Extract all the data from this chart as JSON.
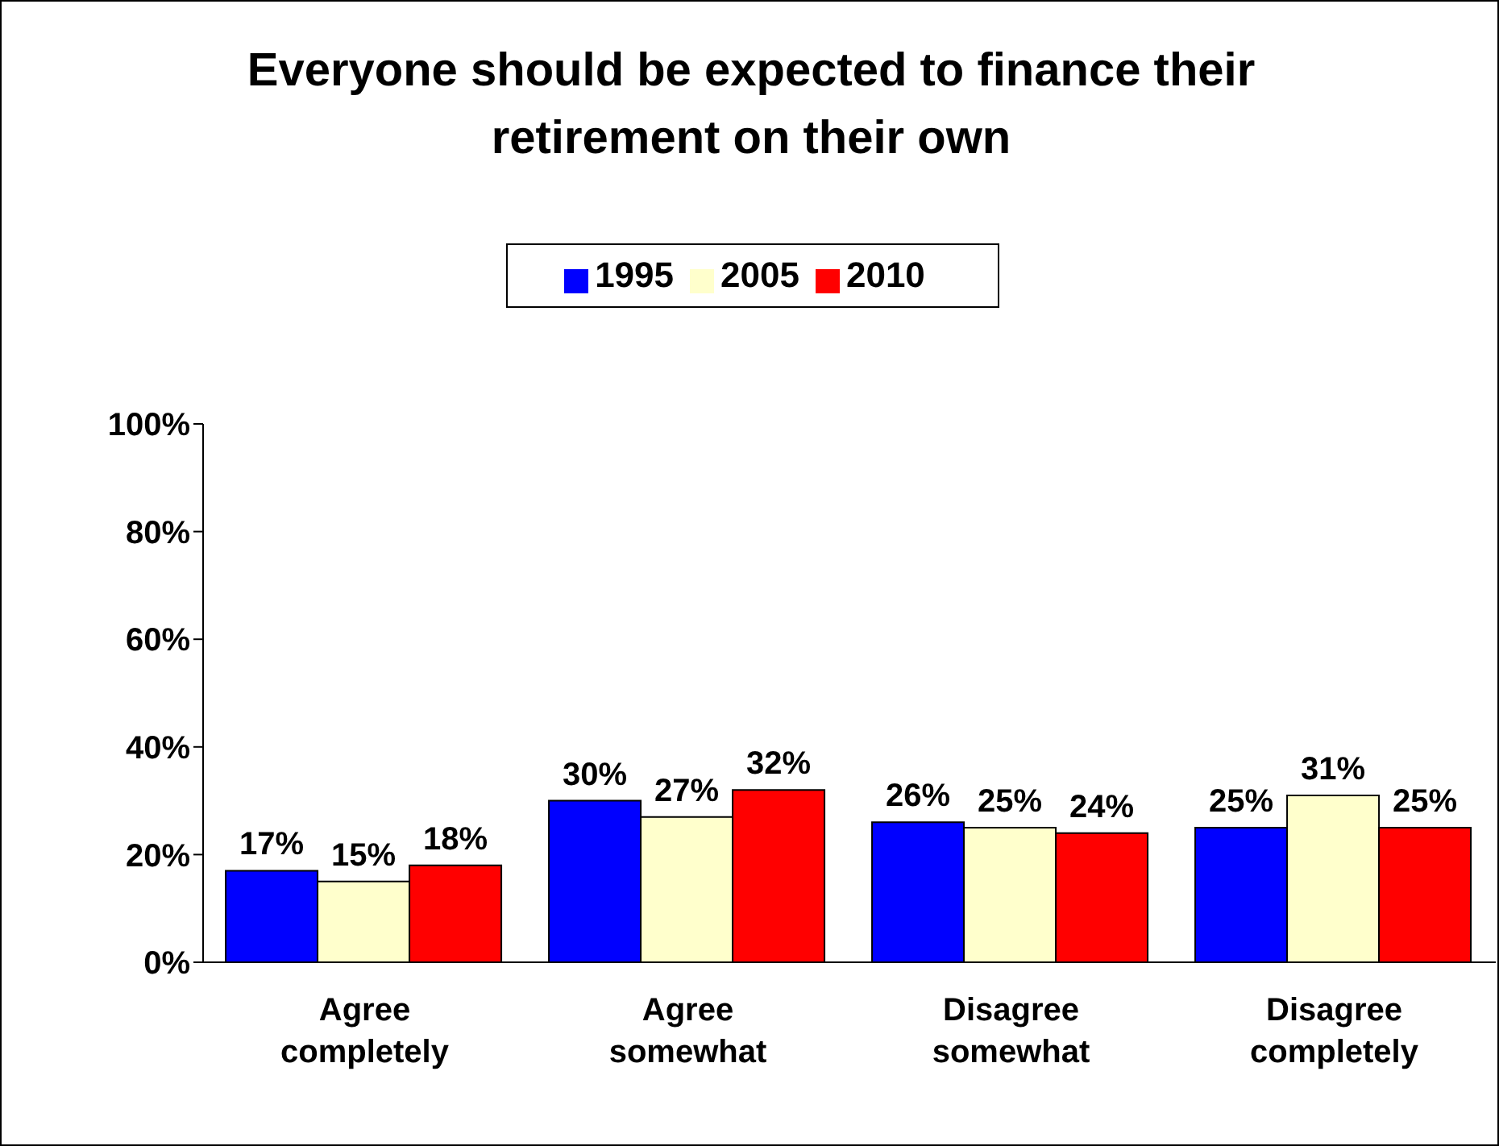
{
  "chart_data": {
    "type": "bar",
    "title": "Everyone should be expected to finance their retirement on their own",
    "categories": [
      "Agree completely",
      "Agree somewhat",
      "Disagree somewhat",
      "Disagree completely"
    ],
    "series": [
      {
        "name": "1995",
        "color": "#0000ff",
        "values": [
          17,
          30,
          26,
          25
        ],
        "value_labels": [
          "17%",
          "30%",
          "26%",
          "25%"
        ]
      },
      {
        "name": "2005",
        "color": "#ffffcc",
        "values": [
          15,
          27,
          25,
          31
        ],
        "value_labels": [
          "15%",
          "27%",
          "25%",
          "31%"
        ]
      },
      {
        "name": "2010",
        "color": "#ff0000",
        "values": [
          18,
          32,
          24,
          25
        ],
        "value_labels": [
          "18%",
          "32%",
          "24%",
          "25%"
        ]
      }
    ],
    "ylim": [
      0,
      100
    ],
    "yticks": [
      {
        "value": 0,
        "label": "0%"
      },
      {
        "value": 20,
        "label": "20%"
      },
      {
        "value": 40,
        "label": "40%"
      },
      {
        "value": 60,
        "label": "60%"
      },
      {
        "value": 80,
        "label": "80%"
      },
      {
        "value": 100,
        "label": "100%"
      }
    ],
    "grid": false,
    "legend": "top"
  }
}
